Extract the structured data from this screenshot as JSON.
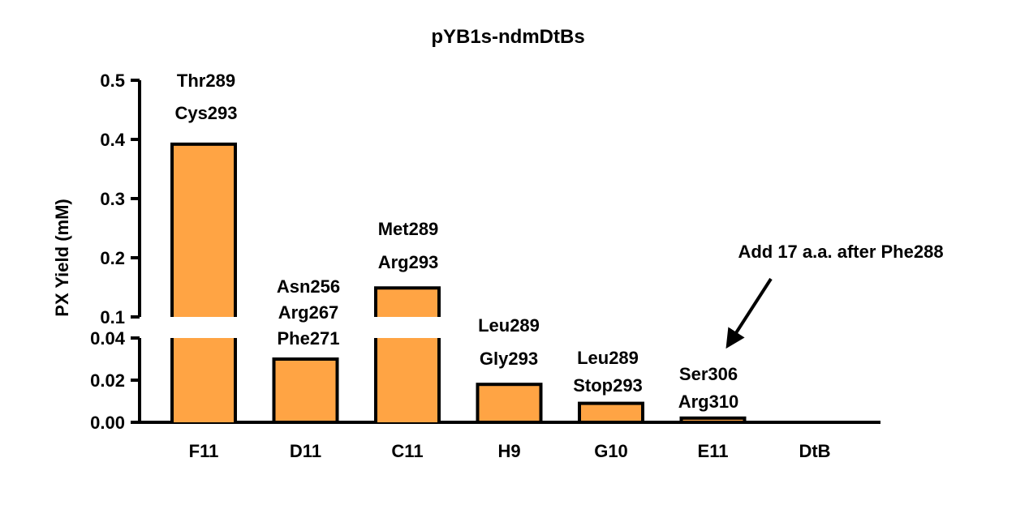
{
  "chart_data": {
    "type": "bar",
    "title": "pYB1s-ndmDtBs",
    "ylabel": "PX Yield (mM)",
    "xlabel": "",
    "categories": [
      "F11",
      "D11",
      "C11",
      "H9",
      "G10",
      "E11",
      "DtB"
    ],
    "values": [
      0.392,
      0.03,
      0.149,
      0.018,
      0.009,
      0.002,
      0.0
    ],
    "bar_labels": [
      [
        "Thr289",
        "Cys293"
      ],
      [
        "Asn256",
        "Arg267",
        "Phe271"
      ],
      [
        "Met289",
        "Arg293"
      ],
      [
        "Leu289",
        "Gly293"
      ],
      [
        "Leu289",
        "Stop293"
      ],
      [
        "Ser306",
        "Arg310"
      ],
      []
    ],
    "y_axis": {
      "broken": true,
      "lower_segment": {
        "range": [
          0,
          0.04
        ],
        "ticks": [
          "0.00",
          "0.02",
          "0.04"
        ]
      },
      "upper_segment": {
        "range": [
          0.1,
          0.5
        ],
        "ticks": [
          "0.1",
          "0.2",
          "0.3",
          "0.4",
          "0.5"
        ]
      }
    },
    "annotations": [
      {
        "text": "Add 17 a.a. after Phe288",
        "target": "E11",
        "arrow": true
      }
    ],
    "colors": {
      "bar_fill": "#FFA444",
      "bar_stroke": "#000000"
    },
    "grid": false,
    "legend": "none"
  }
}
